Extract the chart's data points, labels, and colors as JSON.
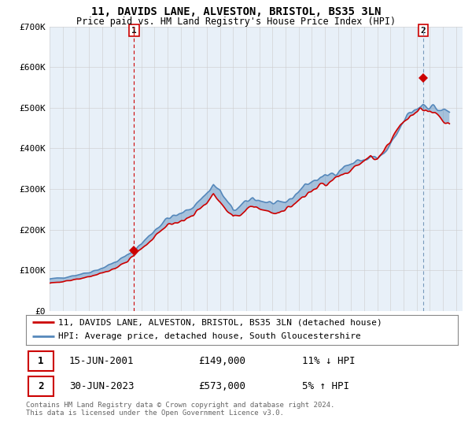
{
  "title": "11, DAVIDS LANE, ALVESTON, BRISTOL, BS35 3LN",
  "subtitle": "Price paid vs. HM Land Registry's House Price Index (HPI)",
  "legend_line1": "11, DAVIDS LANE, ALVESTON, BRISTOL, BS35 3LN (detached house)",
  "legend_line2": "HPI: Average price, detached house, South Gloucestershire",
  "transaction1_date": "15-JUN-2001",
  "transaction1_price": "£149,000",
  "transaction1_hpi": "11% ↓ HPI",
  "transaction2_date": "30-JUN-2023",
  "transaction2_price": "£573,000",
  "transaction2_hpi": "5% ↑ HPI",
  "footer": "Contains HM Land Registry data © Crown copyright and database right 2024.\nThis data is licensed under the Open Government Licence v3.0.",
  "line_color_red": "#cc0000",
  "line_color_blue": "#5588bb",
  "fill_blue_bg": "#ddeeff",
  "grid_color": "#cccccc",
  "background_color": "#ffffff",
  "chart_bg": "#e8f0f8",
  "ylim": [
    0,
    700000
  ],
  "yticks": [
    0,
    100000,
    200000,
    300000,
    400000,
    500000,
    600000,
    700000
  ],
  "ytick_labels": [
    "£0",
    "£100K",
    "£200K",
    "£300K",
    "£400K",
    "£500K",
    "£600K",
    "£700K"
  ],
  "xlim_min": 1995.0,
  "xlim_max": 2026.5,
  "transaction1_x": 2001.45,
  "transaction1_y": 149000,
  "transaction2_x": 2023.5,
  "transaction2_y": 573000
}
